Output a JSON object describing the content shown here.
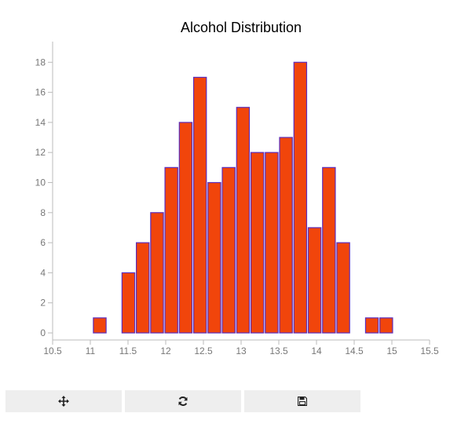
{
  "chart_data": {
    "type": "bar",
    "title": "Alcohol Distribution",
    "xlabel": "",
    "ylabel": "",
    "xlim": [
      10.5,
      15.5
    ],
    "ylim": [
      0,
      19
    ],
    "x_ticks": [
      "10.5",
      "11",
      "11.5",
      "12",
      "12.5",
      "13",
      "13.5",
      "14",
      "14.5",
      "15",
      "15.5"
    ],
    "y_ticks": [
      "0",
      "2",
      "4",
      "6",
      "8",
      "10",
      "12",
      "14",
      "16",
      "18"
    ],
    "bin_width": 0.19,
    "bins": [
      {
        "x0": 11.03,
        "value": 1
      },
      {
        "x0": 11.41,
        "value": 4
      },
      {
        "x0": 11.6,
        "value": 6
      },
      {
        "x0": 11.79,
        "value": 8
      },
      {
        "x0": 11.98,
        "value": 11
      },
      {
        "x0": 12.17,
        "value": 14
      },
      {
        "x0": 12.36,
        "value": 17
      },
      {
        "x0": 12.55,
        "value": 10
      },
      {
        "x0": 12.74,
        "value": 11
      },
      {
        "x0": 12.93,
        "value": 15
      },
      {
        "x0": 13.12,
        "value": 12
      },
      {
        "x0": 13.31,
        "value": 12
      },
      {
        "x0": 13.5,
        "value": 13
      },
      {
        "x0": 13.69,
        "value": 18
      },
      {
        "x0": 13.88,
        "value": 7
      },
      {
        "x0": 14.07,
        "value": 11
      },
      {
        "x0": 14.26,
        "value": 6
      },
      {
        "x0": 14.64,
        "value": 1
      },
      {
        "x0": 14.83,
        "value": 1
      }
    ],
    "grid": false,
    "bar_color": "#f1450b",
    "bar_edge_color": "#5b2dbd"
  },
  "toolbar": [
    {
      "name": "pan-button",
      "icon": "move-arrows-icon"
    },
    {
      "name": "reset-button",
      "icon": "refresh-icon"
    },
    {
      "name": "save-button",
      "icon": "floppy-disk-icon"
    }
  ],
  "colors": {
    "axis": "#bbbbbb",
    "tick_text": "#777777",
    "button_bg": "#eeeeee",
    "icon": "#222222"
  }
}
